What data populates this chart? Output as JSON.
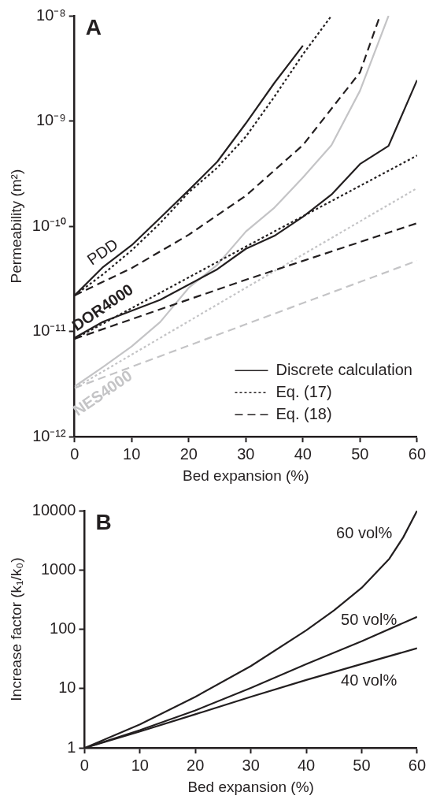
{
  "chart_data": [
    {
      "type": "line",
      "title": "A",
      "xlabel": "Bed expansion (%)",
      "ylabel": "Permeability (m²)",
      "log": "y",
      "legend": "bottom right",
      "xlim": [
        0,
        60
      ],
      "xticks": [
        0,
        10,
        20,
        30,
        40,
        50,
        60
      ],
      "ylim": [
        1e-12,
        1e-08
      ],
      "yticks": [
        {
          "value": 1e-12,
          "label": "10⁻¹²"
        },
        {
          "value": 1e-11,
          "label": "10⁻¹¹"
        },
        {
          "value": 1e-10,
          "label": "10⁻¹⁰"
        },
        {
          "value": 1e-09,
          "label": "10⁻⁹"
        },
        {
          "value": 1e-08,
          "label": "10⁻⁸"
        }
      ],
      "series": [
        {
          "name": "Discrete calculation",
          "color": "#231f20",
          "line_style": "solid",
          "x": [
            0,
            5,
            10,
            15,
            20,
            25,
            30,
            35,
            40
          ],
          "values": [
            2.2e-11,
            4.1e-11,
            6.6e-11,
            1.2e-10,
            2.2e-10,
            4.1e-10,
            9.5e-10,
            2.3e-09,
            5.2e-09
          ]
        },
        {
          "name": "Eq. (17)",
          "color": "#231f20",
          "line_style": "dotted",
          "x": [
            0,
            5,
            10,
            15,
            20,
            25,
            30,
            35,
            40,
            45
          ],
          "values": [
            2.2e-11,
            3.5e-11,
            5.9e-11,
            1.07e-10,
            2.1e-10,
            3.6e-10,
            7.1e-10,
            1.7e-09,
            4.3e-09,
            1e-08
          ]
        },
        {
          "name": "Eq. (18)",
          "color": "#231f20",
          "line_style": "dashed",
          "x": [
            0,
            10,
            20,
            30,
            40,
            50,
            53.5
          ],
          "values": [
            2.2e-11,
            4e-11,
            8.3e-11,
            1.95e-10,
            5.9e-10,
            2.9e-09,
            1e-08
          ]
        },
        {
          "color": "#231f20",
          "line_style": "solid",
          "x": [
            0,
            5,
            15,
            25,
            30,
            35,
            40,
            45,
            50,
            55,
            60
          ],
          "values": [
            8.7e-12,
            1.24e-11,
            2e-11,
            3.9e-11,
            6.1e-11,
            8.1e-11,
            1.23e-10,
            2e-10,
            3.9e-10,
            5.8e-10,
            2.45e-09
          ]
        },
        {
          "color": "#231f20",
          "line_style": "dotted",
          "x": [
            0,
            30,
            60
          ],
          "values": [
            8.5e-12,
            6.4e-11,
            4.7e-10
          ]
        },
        {
          "color": "#231f20",
          "line_style": "dashed",
          "x": [
            0,
            30,
            60
          ],
          "values": [
            8.5e-12,
            3.1e-11,
            1.07e-10
          ]
        },
        {
          "color": "#c4c4c6",
          "line_style": "solid",
          "x": [
            0,
            5,
            10,
            15,
            20,
            25,
            30,
            35,
            40,
            45,
            50,
            55
          ],
          "values": [
            3e-12,
            4.6e-12,
            7.2e-12,
            1.23e-11,
            2.6e-11,
            4.3e-11,
            8.9e-11,
            1.5e-10,
            2.9e-10,
            5.9e-10,
            1.94e-09,
            1e-08
          ]
        },
        {
          "color": "#c4c4c6",
          "line_style": "dotted",
          "x": [
            0,
            30,
            60
          ],
          "values": [
            2.9e-12,
            2.6e-11,
            2.3e-10
          ]
        },
        {
          "color": "#c4c4c6",
          "line_style": "dashed",
          "x": [
            0,
            30,
            60
          ],
          "values": [
            2.9e-12,
            1.17e-11,
            4.7e-11
          ]
        }
      ],
      "annotations": [
        "PDD",
        "DOR4000",
        "NES4000"
      ]
    },
    {
      "type": "line",
      "title": "B",
      "xlabel": "Bed expansion (%)",
      "ylabel": "Increase factor (k₁/k₀)",
      "log": "y",
      "xlim": [
        0,
        60
      ],
      "xticks": [
        0,
        10,
        20,
        30,
        40,
        50,
        60
      ],
      "ylim": [
        1,
        10000
      ],
      "yticks": [
        1,
        10,
        100,
        1000,
        10000
      ],
      "series": [
        {
          "name": "60 vol%",
          "color": "#231f20",
          "x": [
            0,
            10,
            20,
            30,
            40,
            45,
            50,
            55,
            57.5,
            60
          ],
          "values": [
            1,
            2.5,
            7.3,
            24,
            96,
            208,
            500,
            1550,
            3550,
            10000
          ]
        },
        {
          "name": "50 vol%",
          "color": "#231f20",
          "x": [
            0,
            10,
            20,
            30,
            40,
            50,
            60
          ],
          "values": [
            1,
            2.0,
            4.3,
            10.3,
            26,
            63,
            162
          ]
        },
        {
          "name": "40 vol%",
          "color": "#231f20",
          "x": [
            0,
            10,
            20,
            30,
            40,
            50,
            60
          ],
          "values": [
            1,
            1.9,
            3.7,
            7.3,
            14,
            26,
            48
          ]
        }
      ]
    }
  ]
}
